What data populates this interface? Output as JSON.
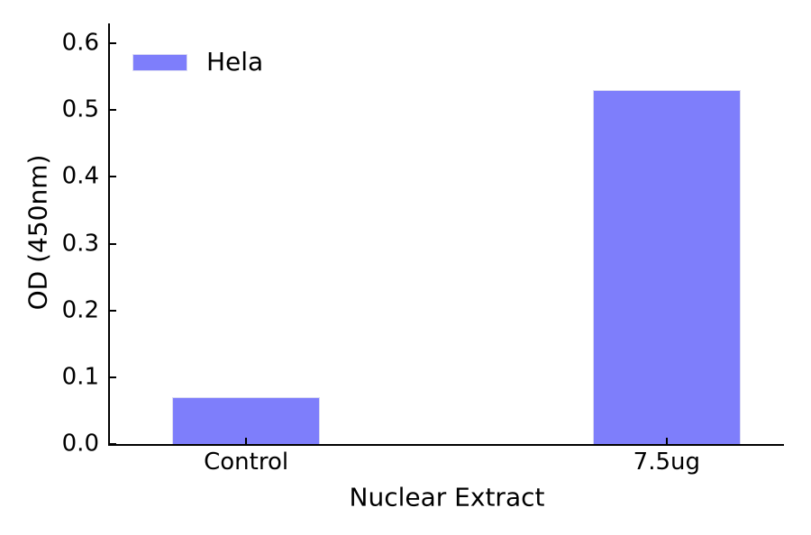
{
  "figure": {
    "background": "#ffffff"
  },
  "chart_data": {
    "type": "bar",
    "categories": [
      "Control",
      "7.5ug"
    ],
    "series": [
      {
        "name": "Hela",
        "color": "#7e7efb",
        "values": [
          0.07,
          0.53
        ]
      }
    ],
    "title": "",
    "xlabel": "Nuclear Extract",
    "ylabel": "OD (450nm)",
    "ylim": [
      0,
      0.63
    ],
    "yticks": [
      0,
      0.1,
      0.2,
      0.3,
      0.4,
      0.5,
      0.6
    ],
    "ytick_labels": [
      "0.0",
      "0.1",
      "0.2",
      "0.3",
      "0.4",
      "0.5",
      "0.6"
    ],
    "grid": false,
    "legend": {
      "entries": [
        "Hela"
      ],
      "position": "upper-left",
      "frame": false
    },
    "axis_color": "#000000",
    "text_color": "#000000",
    "tick_direction": "in"
  }
}
